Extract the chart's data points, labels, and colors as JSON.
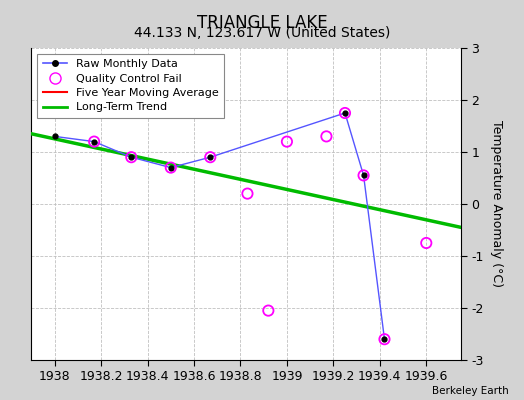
{
  "title": "TRIANGLE LAKE",
  "subtitle": "44.133 N, 123.617 W (United States)",
  "attribution": "Berkeley Earth",
  "xlim": [
    1937.9,
    1939.75
  ],
  "ylim": [
    -3,
    3
  ],
  "xticks": [
    1938,
    1938.2,
    1938.4,
    1938.6,
    1938.8,
    1939,
    1939.2,
    1939.4,
    1939.6
  ],
  "yticks": [
    -3,
    -2,
    -1,
    0,
    1,
    2,
    3
  ],
  "background_color": "#d3d3d3",
  "plot_background_color": "#ffffff",
  "raw_data_x": [
    1938.0,
    1938.17,
    1938.33,
    1938.5,
    1938.67,
    1939.25,
    1939.33,
    1939.42
  ],
  "raw_data_y": [
    1.3,
    1.2,
    0.9,
    0.7,
    0.9,
    1.75,
    0.55,
    -2.6
  ],
  "qc_fail_x": [
    1938.17,
    1938.33,
    1938.5,
    1938.67,
    1938.83,
    1938.92,
    1939.0,
    1939.17,
    1939.25,
    1939.33,
    1939.42,
    1939.6
  ],
  "qc_fail_y": [
    1.2,
    0.9,
    0.7,
    0.9,
    0.2,
    -2.05,
    1.2,
    1.3,
    1.75,
    0.55,
    -2.6,
    -0.75
  ],
  "trend_x": [
    1937.9,
    1939.75
  ],
  "trend_y": [
    1.35,
    -0.45
  ],
  "raw_line_color": "#5555ff",
  "raw_marker_color": "#000000",
  "qc_circle_color": "#ff00ff",
  "trend_color": "#00bb00",
  "mavg_color": "#ff0000",
  "grid_color": "#c0c0c0",
  "ylabel": "Temperature Anomaly (°C)",
  "title_fontsize": 12,
  "subtitle_fontsize": 10,
  "tick_fontsize": 9,
  "ylabel_fontsize": 9
}
